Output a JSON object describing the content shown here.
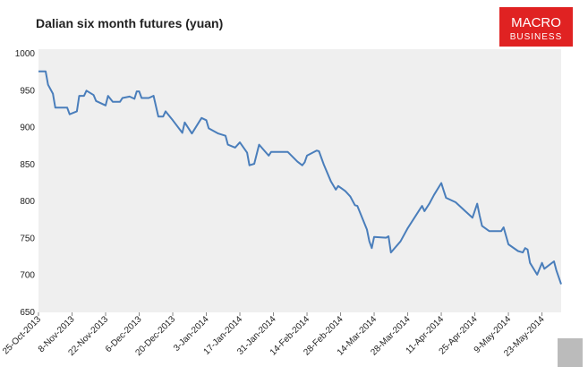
{
  "chart_data": {
    "type": "line",
    "title": "Dalian six month futures (yuan)",
    "brand": [
      "MACRO",
      "BUSINESS"
    ],
    "x": [
      "2013-10-25",
      "2013-10-28",
      "2013-10-29",
      "2013-10-31",
      "2013-11-01",
      "2013-11-06",
      "2013-11-07",
      "2013-11-10",
      "2013-11-11",
      "2013-11-13",
      "2013-11-14",
      "2013-11-17",
      "2013-11-18",
      "2013-11-22",
      "2013-11-23",
      "2013-11-25",
      "2013-11-28",
      "2013-11-29",
      "2013-12-02",
      "2013-12-04",
      "2013-12-05",
      "2013-12-06",
      "2013-12-07",
      "2013-12-10",
      "2013-12-12",
      "2013-12-14",
      "2013-12-16",
      "2013-12-17",
      "2013-12-20",
      "2013-12-24",
      "2013-12-25",
      "2013-12-28",
      "2014-01-01",
      "2014-01-03",
      "2014-01-04",
      "2014-01-08",
      "2014-01-11",
      "2014-01-12",
      "2014-01-15",
      "2014-01-17",
      "2014-01-20",
      "2014-01-21",
      "2014-01-23",
      "2014-01-25",
      "2014-01-29",
      "2014-01-30",
      "2014-02-06",
      "2014-02-10",
      "2014-02-12",
      "2014-02-13",
      "2014-02-14",
      "2014-02-18",
      "2014-02-19",
      "2014-02-21",
      "2014-02-24",
      "2014-02-26",
      "2014-02-27",
      "2014-03-02",
      "2014-03-04",
      "2014-03-06",
      "2014-03-07",
      "2014-03-11",
      "2014-03-12",
      "2014-03-13",
      "2014-03-14",
      "2014-03-19",
      "2014-03-20",
      "2014-03-21",
      "2014-03-25",
      "2014-03-28",
      "2014-04-02",
      "2014-04-03",
      "2014-04-04",
      "2014-04-06",
      "2014-04-08",
      "2014-04-11",
      "2014-04-12",
      "2014-04-13",
      "2014-04-17",
      "2014-04-21",
      "2014-04-24",
      "2014-04-26",
      "2014-04-27",
      "2014-04-28",
      "2014-05-01",
      "2014-05-06",
      "2014-05-07",
      "2014-05-09",
      "2014-05-13",
      "2014-05-15",
      "2014-05-16",
      "2014-05-17",
      "2014-05-18",
      "2014-05-21",
      "2014-05-23",
      "2014-05-24",
      "2014-05-28",
      "2014-05-29",
      "2014-05-31"
    ],
    "series": [
      {
        "name": "Dalian six month futures",
        "color": "#4a7ebb",
        "values": [
          976,
          976,
          958,
          946,
          927,
          927,
          918,
          922,
          943,
          943,
          950,
          944,
          936,
          930,
          943,
          935,
          935,
          940,
          942,
          939,
          949,
          949,
          940,
          940,
          943,
          915,
          915,
          922,
          910,
          893,
          907,
          892,
          913,
          910,
          899,
          892,
          889,
          877,
          873,
          880,
          866,
          849,
          851,
          877,
          862,
          867,
          867,
          854,
          849,
          853,
          862,
          869,
          868,
          850,
          827,
          816,
          821,
          814,
          807,
          795,
          794,
          762,
          746,
          737,
          752,
          751,
          753,
          731,
          746,
          764,
          789,
          794,
          787,
          797,
          809,
          825,
          815,
          805,
          799,
          787,
          778,
          797,
          781,
          767,
          760,
          760,
          765,
          742,
          733,
          731,
          737,
          735,
          717,
          701,
          717,
          709,
          719,
          707,
          688
        ]
      }
    ],
    "xlim": [
      "2013-10-25",
      "2014-05-31"
    ],
    "xticks": [
      {
        "value": "2013-10-25",
        "label": "25-Oct-2013"
      },
      {
        "value": "2013-11-08",
        "label": "8-Nov-2013"
      },
      {
        "value": "2013-11-22",
        "label": "22-Nov-2013"
      },
      {
        "value": "2013-12-06",
        "label": "6-Dec-2013"
      },
      {
        "value": "2013-12-20",
        "label": "20-Dec-2013"
      },
      {
        "value": "2014-01-03",
        "label": "3-Jan-2014"
      },
      {
        "value": "2014-01-17",
        "label": "17-Jan-2014"
      },
      {
        "value": "2014-01-31",
        "label": "31-Jan-2014"
      },
      {
        "value": "2014-02-14",
        "label": "14-Feb-2014"
      },
      {
        "value": "2014-02-28",
        "label": "28-Feb-2014"
      },
      {
        "value": "2014-03-14",
        "label": "14-Mar-2014"
      },
      {
        "value": "2014-03-28",
        "label": "28-Mar-2014"
      },
      {
        "value": "2014-04-11",
        "label": "11-Apr-2014"
      },
      {
        "value": "2014-04-25",
        "label": "25-Apr-2014"
      },
      {
        "value": "2014-05-09",
        "label": "9-May-2014"
      },
      {
        "value": "2014-05-23",
        "label": "23-May-2014"
      }
    ],
    "ylim": [
      650,
      1000
    ],
    "yticks": [
      650,
      700,
      750,
      800,
      850,
      900,
      950,
      1000
    ],
    "grid": false
  }
}
